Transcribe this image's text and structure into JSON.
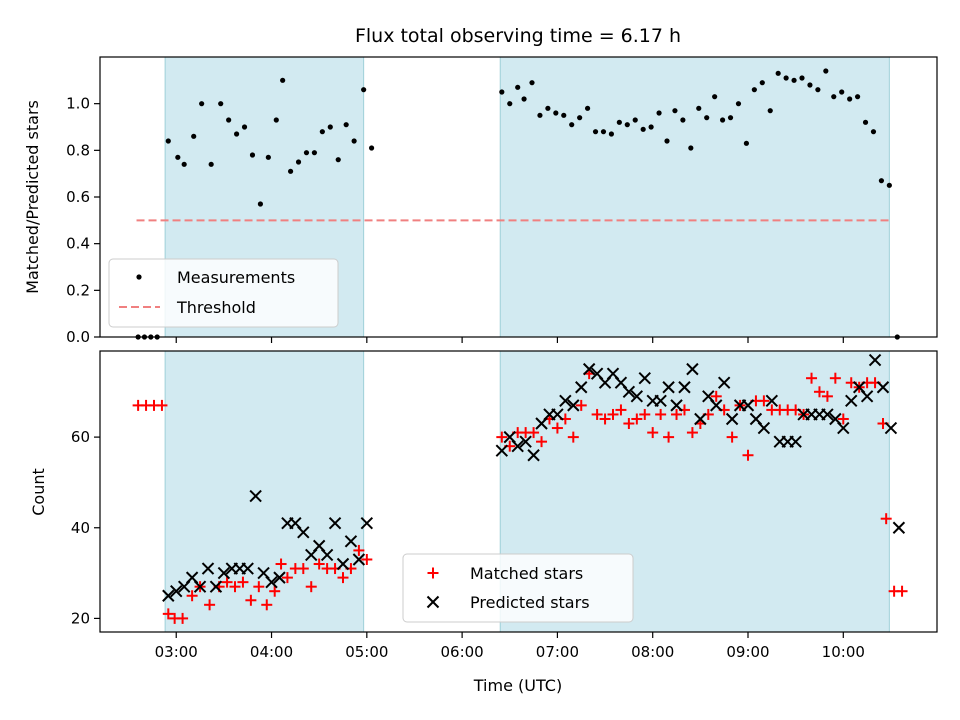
{
  "chart_data": [
    {
      "type": "scatter",
      "title": "Flux total observing time = 6.17 h",
      "ylabel": "Matched/Predicted stars",
      "xlabel": "",
      "ylim": [
        0,
        1.2
      ],
      "yticks": [
        "0.0",
        "0.2",
        "0.4",
        "0.6",
        "0.8",
        "1.0"
      ],
      "grid": false,
      "legend_position": "lower-left",
      "shaded_intervals": [
        [
          "02:53",
          "04:58"
        ],
        [
          "06:24",
          "10:29"
        ]
      ],
      "shade_color": "#add8e6",
      "threshold": {
        "name": "Threshold",
        "value": 0.5,
        "x_range": [
          "02:35",
          "10:31"
        ],
        "color": "#f08080"
      },
      "series": [
        {
          "name": "Measurements",
          "color": "#000000",
          "points": [
            [
              "02:36",
              0.0
            ],
            [
              "02:40",
              0.0
            ],
            [
              "02:44",
              0.0
            ],
            [
              "02:48",
              0.0
            ],
            [
              "02:55",
              0.84
            ],
            [
              "03:01",
              0.77
            ],
            [
              "03:05",
              0.74
            ],
            [
              "03:11",
              0.86
            ],
            [
              "03:16",
              1.0
            ],
            [
              "03:22",
              0.74
            ],
            [
              "03:28",
              1.0
            ],
            [
              "03:33",
              0.93
            ],
            [
              "03:38",
              0.87
            ],
            [
              "03:43",
              0.9
            ],
            [
              "03:48",
              0.78
            ],
            [
              "03:53",
              0.57
            ],
            [
              "03:58",
              0.77
            ],
            [
              "04:03",
              0.93
            ],
            [
              "04:07",
              1.1
            ],
            [
              "04:12",
              0.71
            ],
            [
              "04:17",
              0.75
            ],
            [
              "04:22",
              0.79
            ],
            [
              "04:27",
              0.79
            ],
            [
              "04:32",
              0.88
            ],
            [
              "04:37",
              0.9
            ],
            [
              "04:42",
              0.76
            ],
            [
              "04:47",
              0.91
            ],
            [
              "04:52",
              0.84
            ],
            [
              "04:58",
              1.06
            ],
            [
              "05:03",
              0.81
            ],
            [
              "06:25",
              1.05
            ],
            [
              "06:30",
              1.0
            ],
            [
              "06:35",
              1.07
            ],
            [
              "06:39",
              1.02
            ],
            [
              "06:44",
              1.09
            ],
            [
              "06:49",
              0.95
            ],
            [
              "06:54",
              0.98
            ],
            [
              "06:59",
              0.96
            ],
            [
              "07:04",
              0.95
            ],
            [
              "07:09",
              0.91
            ],
            [
              "07:14",
              0.94
            ],
            [
              "07:19",
              0.98
            ],
            [
              "07:24",
              0.88
            ],
            [
              "07:29",
              0.88
            ],
            [
              "07:34",
              0.87
            ],
            [
              "07:39",
              0.92
            ],
            [
              "07:44",
              0.91
            ],
            [
              "07:49",
              0.93
            ],
            [
              "07:54",
              0.89
            ],
            [
              "07:59",
              0.9
            ],
            [
              "08:04",
              0.96
            ],
            [
              "08:09",
              0.84
            ],
            [
              "08:14",
              0.97
            ],
            [
              "08:19",
              0.93
            ],
            [
              "08:24",
              0.81
            ],
            [
              "08:29",
              0.98
            ],
            [
              "08:34",
              0.94
            ],
            [
              "08:39",
              1.03
            ],
            [
              "08:44",
              0.93
            ],
            [
              "08:49",
              0.94
            ],
            [
              "08:54",
              1.0
            ],
            [
              "08:59",
              0.83
            ],
            [
              "09:04",
              1.06
            ],
            [
              "09:09",
              1.09
            ],
            [
              "09:14",
              0.97
            ],
            [
              "09:19",
              1.13
            ],
            [
              "09:24",
              1.11
            ],
            [
              "09:29",
              1.1
            ],
            [
              "09:34",
              1.11
            ],
            [
              "09:39",
              1.08
            ],
            [
              "09:44",
              1.06
            ],
            [
              "09:49",
              1.14
            ],
            [
              "09:54",
              1.03
            ],
            [
              "09:59",
              1.05
            ],
            [
              "10:04",
              1.02
            ],
            [
              "10:09",
              1.03
            ],
            [
              "10:14",
              0.92
            ],
            [
              "10:19",
              0.88
            ],
            [
              "10:24",
              0.67
            ],
            [
              "10:29",
              0.65
            ],
            [
              "10:34",
              0.0
            ]
          ]
        }
      ]
    },
    {
      "type": "scatter",
      "title": "",
      "xlabel": "Time (UTC)",
      "ylabel": "Count",
      "ylim": [
        17,
        79
      ],
      "yticks": [
        "20",
        "40",
        "60"
      ],
      "xticks": [
        "03:00",
        "04:00",
        "05:00",
        "06:00",
        "07:00",
        "08:00",
        "09:00",
        "10:00"
      ],
      "xlim": [
        "02:12",
        "10:59"
      ],
      "grid": false,
      "legend_position": "bottom-center",
      "series": [
        {
          "name": "Matched stars",
          "marker": "+",
          "color": "#ff0000",
          "points": [
            [
              "02:36",
              67
            ],
            [
              "02:41",
              67
            ],
            [
              "02:46",
              67
            ],
            [
              "02:51",
              67
            ],
            [
              "02:55",
              21
            ],
            [
              "02:59",
              20
            ],
            [
              "03:04",
              20
            ],
            [
              "03:10",
              25
            ],
            [
              "03:15",
              27
            ],
            [
              "03:21",
              23
            ],
            [
              "03:27",
              27
            ],
            [
              "03:32",
              28
            ],
            [
              "03:37",
              27
            ],
            [
              "03:42",
              28
            ],
            [
              "03:47",
              24
            ],
            [
              "03:52",
              27
            ],
            [
              "03:57",
              23
            ],
            [
              "04:02",
              26
            ],
            [
              "04:06",
              32
            ],
            [
              "04:10",
              29
            ],
            [
              "04:15",
              31
            ],
            [
              "04:20",
              31
            ],
            [
              "04:25",
              27
            ],
            [
              "04:30",
              32
            ],
            [
              "04:35",
              31
            ],
            [
              "04:40",
              31
            ],
            [
              "04:45",
              29
            ],
            [
              "04:50",
              31
            ],
            [
              "04:55",
              35
            ],
            [
              "05:00",
              33
            ],
            [
              "06:25",
              60
            ],
            [
              "06:30",
              58
            ],
            [
              "06:35",
              61
            ],
            [
              "06:40",
              61
            ],
            [
              "06:45",
              61
            ],
            [
              "06:50",
              59
            ],
            [
              "06:55",
              64
            ],
            [
              "07:00",
              62
            ],
            [
              "07:05",
              64
            ],
            [
              "07:10",
              60
            ],
            [
              "07:15",
              67
            ],
            [
              "07:20",
              74
            ],
            [
              "07:25",
              65
            ],
            [
              "07:30",
              64
            ],
            [
              "07:35",
              65
            ],
            [
              "07:40",
              66
            ],
            [
              "07:45",
              63
            ],
            [
              "07:50",
              64
            ],
            [
              "07:55",
              65
            ],
            [
              "08:00",
              61
            ],
            [
              "08:05",
              65
            ],
            [
              "08:10",
              60
            ],
            [
              "08:15",
              65
            ],
            [
              "08:20",
              66
            ],
            [
              "08:25",
              61
            ],
            [
              "08:30",
              63
            ],
            [
              "08:35",
              65
            ],
            [
              "08:40",
              69
            ],
            [
              "08:45",
              66
            ],
            [
              "08:50",
              60
            ],
            [
              "08:55",
              67
            ],
            [
              "09:00",
              56
            ],
            [
              "09:05",
              68
            ],
            [
              "09:10",
              68
            ],
            [
              "09:15",
              66
            ],
            [
              "09:20",
              66
            ],
            [
              "09:25",
              66
            ],
            [
              "09:30",
              66
            ],
            [
              "09:35",
              65
            ],
            [
              "09:40",
              73
            ],
            [
              "09:45",
              70
            ],
            [
              "09:50",
              69
            ],
            [
              "09:55",
              73
            ],
            [
              "10:00",
              64
            ],
            [
              "10:05",
              72
            ],
            [
              "10:10",
              71
            ],
            [
              "10:15",
              72
            ],
            [
              "10:20",
              72
            ],
            [
              "10:25",
              63
            ],
            [
              "10:27",
              42
            ],
            [
              "10:32",
              26
            ],
            [
              "10:37",
              26
            ]
          ]
        },
        {
          "name": "Predicted stars",
          "marker": "x",
          "color": "#000000",
          "points": [
            [
              "02:55",
              25
            ],
            [
              "03:00",
              26
            ],
            [
              "03:05",
              27
            ],
            [
              "03:10",
              29
            ],
            [
              "03:15",
              27
            ],
            [
              "03:20",
              31
            ],
            [
              "03:25",
              27
            ],
            [
              "03:30",
              30
            ],
            [
              "03:35",
              31
            ],
            [
              "03:40",
              31
            ],
            [
              "03:45",
              31
            ],
            [
              "03:50",
              47
            ],
            [
              "03:55",
              30
            ],
            [
              "04:00",
              28
            ],
            [
              "04:05",
              29
            ],
            [
              "04:10",
              41
            ],
            [
              "04:15",
              41
            ],
            [
              "04:20",
              39
            ],
            [
              "04:25",
              34
            ],
            [
              "04:30",
              36
            ],
            [
              "04:35",
              34
            ],
            [
              "04:40",
              41
            ],
            [
              "04:45",
              32
            ],
            [
              "04:50",
              37
            ],
            [
              "04:55",
              33
            ],
            [
              "05:00",
              41
            ],
            [
              "06:25",
              57
            ],
            [
              "06:30",
              60
            ],
            [
              "06:35",
              58
            ],
            [
              "06:40",
              59
            ],
            [
              "06:45",
              56
            ],
            [
              "06:50",
              63
            ],
            [
              "06:55",
              65
            ],
            [
              "07:00",
              65
            ],
            [
              "07:05",
              68
            ],
            [
              "07:10",
              67
            ],
            [
              "07:15",
              71
            ],
            [
              "07:20",
              75
            ],
            [
              "07:25",
              74
            ],
            [
              "07:30",
              72
            ],
            [
              "07:35",
              74
            ],
            [
              "07:40",
              72
            ],
            [
              "07:45",
              70
            ],
            [
              "07:50",
              69
            ],
            [
              "07:55",
              73
            ],
            [
              "08:00",
              68
            ],
            [
              "08:05",
              68
            ],
            [
              "08:10",
              71
            ],
            [
              "08:15",
              67
            ],
            [
              "08:20",
              71
            ],
            [
              "08:25",
              75
            ],
            [
              "08:30",
              64
            ],
            [
              "08:35",
              69
            ],
            [
              "08:40",
              67
            ],
            [
              "08:45",
              72
            ],
            [
              "08:50",
              64
            ],
            [
              "08:55",
              67
            ],
            [
              "09:00",
              67
            ],
            [
              "09:05",
              64
            ],
            [
              "09:10",
              62
            ],
            [
              "09:15",
              68
            ],
            [
              "09:20",
              59
            ],
            [
              "09:25",
              59
            ],
            [
              "09:30",
              59
            ],
            [
              "09:35",
              65
            ],
            [
              "09:40",
              65
            ],
            [
              "09:45",
              65
            ],
            [
              "09:50",
              65
            ],
            [
              "09:55",
              64
            ],
            [
              "10:00",
              62
            ],
            [
              "10:05",
              68
            ],
            [
              "10:10",
              71
            ],
            [
              "10:15",
              69
            ],
            [
              "10:20",
              77
            ],
            [
              "10:25",
              71
            ],
            [
              "10:30",
              62
            ],
            [
              "10:35",
              40
            ]
          ]
        }
      ]
    }
  ]
}
